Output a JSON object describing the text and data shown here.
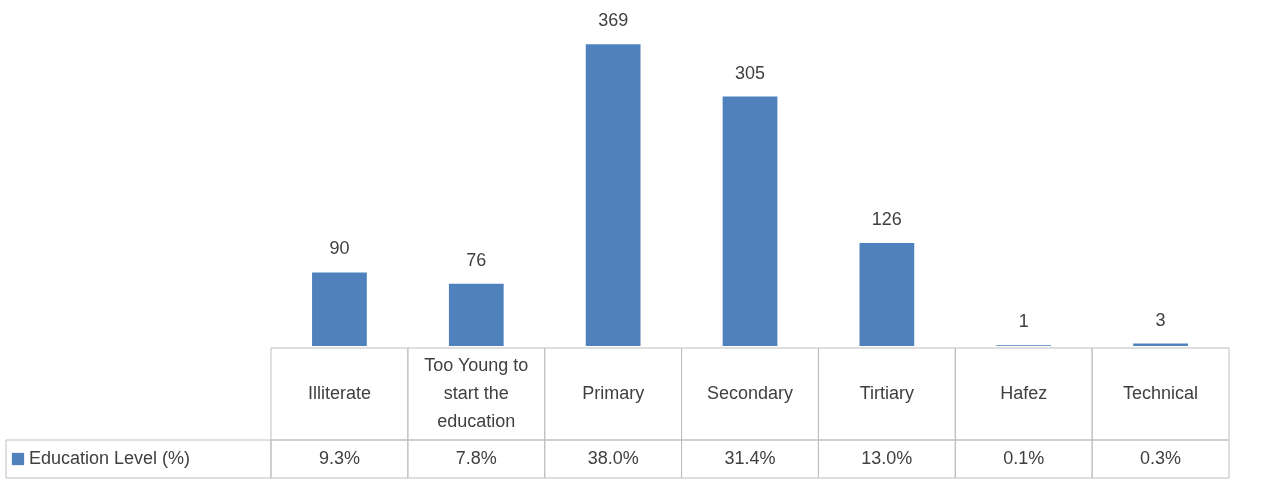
{
  "chart_data": {
    "type": "bar",
    "categories": [
      "Illiterate",
      "Too Young to start the education",
      "Primary",
      "Secondary",
      "Tirtiary",
      "Hafez",
      "Technical"
    ],
    "series": [
      {
        "name": "Education Level (%)",
        "color": "#4f81bd",
        "values": [
          90,
          76,
          369,
          305,
          126,
          1,
          3
        ]
      }
    ],
    "data_labels": true,
    "legend": "bottom left",
    "annotations": [
      "9.3%",
      "7.8%",
      "38.0%",
      "31.4%",
      "13.0%",
      "0.1%",
      "0.3%"
    ]
  }
}
